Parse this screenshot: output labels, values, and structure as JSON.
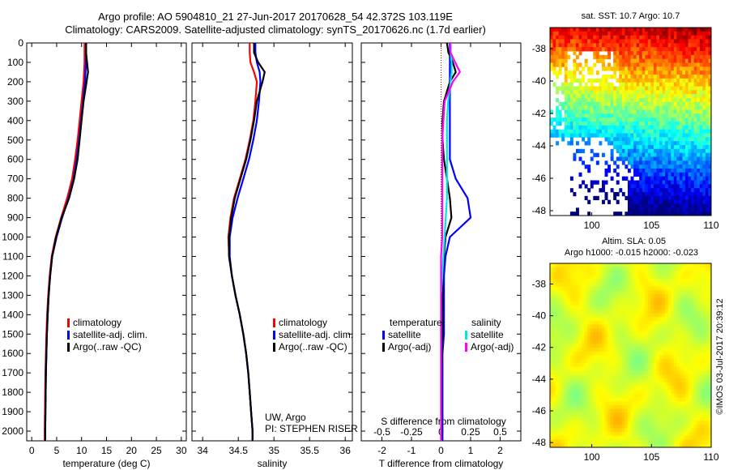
{
  "header": {
    "line1": "Argo profile: AO 5904810_21 27-Jun-2017 20170628_54 42.372S 103.119E",
    "line2": "Climatology: CARS2009. Satellite-adjusted climatology: synTS_20170626.nc (1.7d earlier)"
  },
  "colors": {
    "climatology": "#ff0000",
    "satellite": "#0000ff",
    "argo": "#000000",
    "satellite_s": "#00e5e5",
    "argo_s": "#ff00ff"
  },
  "annotations": {
    "credit1": "UW, Argo",
    "credit2": "PI: STEPHEN RISER",
    "timestamp": "©IMOS 03-Jul-2017 20:39:12"
  },
  "chart_data": [
    {
      "type": "line",
      "id": "temperature",
      "xlabel": "temperature (deg C)",
      "ylabel": "",
      "xlim": [
        -1,
        31
      ],
      "ylim": [
        0,
        2050
      ],
      "y_reversed": true,
      "xticks": [
        0,
        5,
        10,
        15,
        20,
        25,
        30
      ],
      "yticks": [
        0,
        100,
        200,
        300,
        400,
        500,
        600,
        700,
        800,
        900,
        1000,
        1100,
        1200,
        1300,
        1400,
        1500,
        1600,
        1700,
        1800,
        1900,
        2000
      ],
      "legend": [
        "climatology",
        "satellite-adj. clim.",
        "Argo(..raw -QC)"
      ],
      "legend_position": "lower-right",
      "depth": [
        0,
        50,
        100,
        150,
        200,
        300,
        400,
        500,
        600,
        700,
        800,
        900,
        1000,
        1100,
        1200,
        1300,
        1400,
        1500,
        1600,
        1700,
        1800,
        1900,
        2000,
        2050
      ],
      "series": [
        {
          "name": "climatology",
          "color": "red",
          "values": [
            10.6,
            10.6,
            10.6,
            10.5,
            10.4,
            10.0,
            9.6,
            9.2,
            8.7,
            8.1,
            7.1,
            5.9,
            4.8,
            4.0,
            3.6,
            3.3,
            3.1,
            2.95,
            2.85,
            2.75,
            2.7,
            2.65,
            2.6,
            2.6
          ]
        },
        {
          "name": "satellite-adj. clim.",
          "color": "blue",
          "values": [
            10.9,
            10.9,
            10.9,
            10.8,
            10.7,
            10.3,
            9.9,
            9.5,
            9.0,
            8.4,
            7.4,
            6.1,
            5.0,
            4.1,
            3.7,
            3.4,
            3.2,
            3.05,
            2.95,
            2.85,
            2.8,
            2.75,
            2.7,
            2.7
          ]
        },
        {
          "name": "Argo(..raw -QC)",
          "color": "black",
          "values": [
            10.9,
            10.9,
            11.1,
            11.3,
            11.0,
            10.4,
            10.0,
            9.6,
            9.2,
            8.5,
            7.5,
            6.0,
            4.9,
            4.1,
            3.7,
            3.4,
            3.2,
            3.05,
            2.95,
            2.85,
            2.8,
            2.75,
            2.7,
            2.7
          ]
        }
      ]
    },
    {
      "type": "line",
      "id": "salinity",
      "xlabel": "salinity",
      "xlim": [
        33.85,
        36.1
      ],
      "ylim": [
        0,
        2050
      ],
      "y_reversed": true,
      "xticks": [
        34,
        34.5,
        35,
        35.5,
        36
      ],
      "legend": [
        "climatology",
        "satellite-adj. clim.",
        "Argo(..raw -QC)"
      ],
      "legend_position": "lower-right",
      "depth": [
        0,
        50,
        100,
        150,
        200,
        300,
        400,
        500,
        600,
        700,
        800,
        900,
        1000,
        1100,
        1200,
        1300,
        1400,
        1500,
        1600,
        1700,
        1800,
        1900,
        2000,
        2050
      ],
      "series": [
        {
          "name": "climatology",
          "color": "red",
          "values": [
            34.66,
            34.66,
            34.67,
            34.72,
            34.76,
            34.74,
            34.71,
            34.66,
            34.6,
            34.52,
            34.44,
            34.39,
            34.36,
            34.37,
            34.41,
            34.46,
            34.52,
            34.57,
            34.61,
            34.64,
            34.66,
            34.68,
            34.7,
            34.7
          ]
        },
        {
          "name": "satellite-adj. clim.",
          "color": "blue",
          "values": [
            34.74,
            34.74,
            34.76,
            34.8,
            34.81,
            34.79,
            34.76,
            34.71,
            34.65,
            34.57,
            34.49,
            34.42,
            34.38,
            34.38,
            34.41,
            34.46,
            34.52,
            34.57,
            34.61,
            34.64,
            34.66,
            34.68,
            34.7,
            34.7
          ]
        },
        {
          "name": "Argo(..raw -QC)",
          "color": "black",
          "values": [
            34.72,
            34.72,
            34.78,
            34.87,
            34.84,
            34.76,
            34.72,
            34.67,
            34.61,
            34.53,
            34.45,
            34.4,
            34.37,
            34.37,
            34.41,
            34.46,
            34.52,
            34.57,
            34.61,
            34.64,
            34.66,
            34.68,
            34.7,
            34.7
          ]
        }
      ]
    },
    {
      "type": "line",
      "id": "difference",
      "xlabel": "T difference from climatology",
      "xlabel2": "S difference from climatology",
      "xlim": [
        -2.7,
        2.7
      ],
      "ylim": [
        0,
        2050
      ],
      "y_reversed": true,
      "xticks": [
        -2,
        -1,
        0,
        1,
        2
      ],
      "xticks_s": [
        -0.5,
        -0.25,
        0,
        0.25,
        0.5
      ],
      "legend_t_title": "temperature",
      "legend_s_title": "salinity",
      "legend_t": [
        "satellite",
        "Argo(-adj)"
      ],
      "legend_s": [
        "satellite",
        "Argo(-adj)"
      ],
      "depth": [
        0,
        50,
        100,
        150,
        200,
        300,
        400,
        500,
        600,
        700,
        800,
        900,
        1000,
        1100,
        1200,
        1300,
        1400,
        1500,
        1600,
        1700,
        1800,
        1900,
        2000,
        2050
      ],
      "series": [
        {
          "name": "T satellite",
          "color": "blue",
          "values": [
            0.3,
            0.3,
            0.3,
            0.3,
            0.3,
            0.3,
            0.3,
            0.3,
            0.3,
            0.5,
            0.9,
            1.0,
            0.3,
            0.15,
            0.1,
            0.1,
            0.1,
            0.1,
            0.05,
            0.05,
            0.05,
            0.05,
            0.05,
            0.05
          ]
        },
        {
          "name": "T Argo(-adj)",
          "color": "black",
          "values": [
            0.2,
            0.25,
            0.4,
            0.5,
            0.3,
            0.1,
            0.05,
            0.05,
            0.1,
            0.2,
            0.3,
            0.35,
            0.15,
            0.1,
            0.05,
            0.05,
            0.05,
            0.05,
            0.03,
            0.02,
            0.02,
            0.02,
            0.02,
            0.02
          ]
        },
        {
          "name": "S satellite",
          "color": "cyan",
          "values": [
            0.08,
            0.08,
            0.09,
            0.09,
            0.08,
            0.06,
            0.05,
            0.05,
            0.05,
            0.05,
            0.05,
            0.04,
            0.03,
            0.02,
            0.01,
            0.0,
            0.0,
            0.0,
            0.0,
            0.0,
            0.0,
            0.0,
            0.0,
            0.0
          ]
        },
        {
          "name": "S Argo(-adj)",
          "color": "magenta",
          "values": [
            0.08,
            0.08,
            0.12,
            0.16,
            0.1,
            0.03,
            0.02,
            0.01,
            0.01,
            0.01,
            0.01,
            0.01,
            0.01,
            0.0,
            0.0,
            0.0,
            0.0,
            0.0,
            0.0,
            0.0,
            0.0,
            0.0,
            0.0,
            0.0
          ]
        }
      ]
    },
    {
      "type": "heatmap",
      "id": "sst-map",
      "title": "sat. SST: 10.7 Argo: 10.7",
      "xlim": [
        96.5,
        110
      ],
      "ylim": [
        -48.3,
        -36.7
      ],
      "xticks": [
        100,
        105,
        110
      ],
      "yticks": [
        -38,
        -40,
        -42,
        -44,
        -46,
        -48
      ]
    },
    {
      "type": "heatmap",
      "id": "sla-map",
      "title1": "Altim. SLA: 0.05",
      "title2": "Argo h1000: -0.015 h2000: -0.023",
      "xlim": [
        96.5,
        110
      ],
      "ylim": [
        -48.3,
        -36.7
      ],
      "xticks": [
        100,
        105,
        110
      ],
      "yticks": [
        -38,
        -40,
        -42,
        -44,
        -46,
        -48
      ]
    }
  ]
}
